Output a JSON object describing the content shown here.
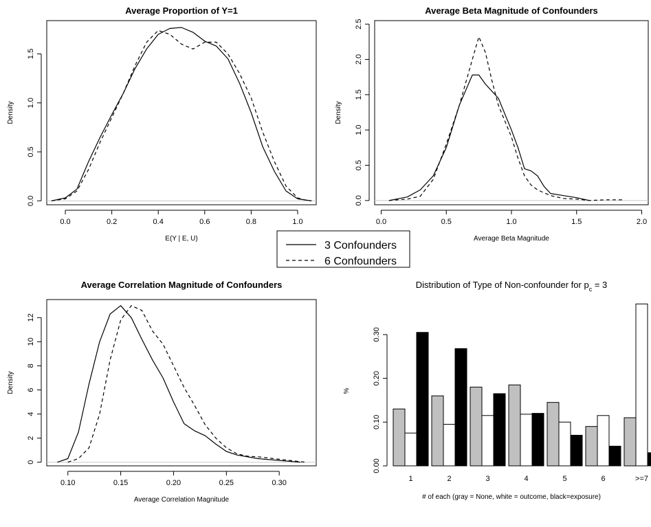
{
  "legend": {
    "entries": [
      {
        "label": "3 Confounders",
        "dash": "solid"
      },
      {
        "label": "6 Confounders",
        "dash": "dashed"
      }
    ]
  },
  "chart_data": [
    {
      "type": "line",
      "title": "Average Proportion of Y=1",
      "xlabel": "E(Y | E, U)",
      "ylabel": "Density",
      "xlim": [
        -0.08,
        1.08
      ],
      "ylim": [
        -0.04,
        1.84
      ],
      "xticks": [
        0.0,
        0.2,
        0.4,
        0.6,
        0.8,
        1.0
      ],
      "yticks": [
        0.0,
        0.5,
        1.0,
        1.5
      ],
      "xtick_labels": [
        "0.0",
        "0.2",
        "0.4",
        "0.6",
        "0.8",
        "1.0"
      ],
      "ytick_labels": [
        "0.0",
        "0.5",
        "1.0",
        "1.5"
      ],
      "series": [
        {
          "name": "3 Confounders",
          "x": [
            -0.06,
            0.0,
            0.05,
            0.1,
            0.15,
            0.2,
            0.25,
            0.3,
            0.35,
            0.4,
            0.45,
            0.5,
            0.55,
            0.6,
            0.65,
            0.7,
            0.75,
            0.8,
            0.85,
            0.9,
            0.95,
            1.0,
            1.03,
            1.06
          ],
          "y": [
            0,
            0.03,
            0.12,
            0.4,
            0.65,
            0.88,
            1.1,
            1.35,
            1.55,
            1.7,
            1.76,
            1.77,
            1.72,
            1.63,
            1.58,
            1.45,
            1.2,
            0.9,
            0.55,
            0.3,
            0.1,
            0.02,
            0.01,
            0
          ]
        },
        {
          "name": "6 Confounders",
          "x": [
            -0.06,
            0.0,
            0.05,
            0.1,
            0.15,
            0.2,
            0.25,
            0.3,
            0.35,
            0.4,
            0.45,
            0.5,
            0.55,
            0.6,
            0.65,
            0.7,
            0.75,
            0.8,
            0.85,
            0.9,
            0.95,
            1.0,
            1.03,
            1.06
          ],
          "y": [
            0,
            0.02,
            0.1,
            0.32,
            0.6,
            0.85,
            1.1,
            1.38,
            1.62,
            1.74,
            1.7,
            1.6,
            1.55,
            1.62,
            1.62,
            1.5,
            1.3,
            1.05,
            0.7,
            0.4,
            0.15,
            0.03,
            0.01,
            0
          ]
        }
      ]
    },
    {
      "type": "line",
      "title": "Average Beta Magnitude of Confounders",
      "xlabel": "Average Beta Magnitude",
      "ylabel": "Density",
      "xlim": [
        -0.05,
        2.05
      ],
      "ylim": [
        -0.06,
        2.55
      ],
      "xticks": [
        0.0,
        0.5,
        1.0,
        1.5,
        2.0
      ],
      "yticks": [
        0.0,
        0.5,
        1.0,
        1.5,
        2.0,
        2.5
      ],
      "xtick_labels": [
        "0.0",
        "0.5",
        "1.0",
        "1.5",
        "2.0"
      ],
      "ytick_labels": [
        "0.0",
        "0.5",
        "1.0",
        "1.5",
        "2.0",
        "2.5"
      ],
      "series": [
        {
          "name": "3 Confounders",
          "x": [
            0.06,
            0.2,
            0.3,
            0.4,
            0.5,
            0.6,
            0.7,
            0.75,
            0.8,
            0.9,
            1.0,
            1.05,
            1.1,
            1.15,
            1.2,
            1.25,
            1.3,
            1.4,
            1.5,
            1.55,
            1.6
          ],
          "y": [
            0,
            0.05,
            0.15,
            0.35,
            0.75,
            1.35,
            1.78,
            1.78,
            1.65,
            1.45,
            1.0,
            0.75,
            0.45,
            0.42,
            0.35,
            0.2,
            0.1,
            0.07,
            0.04,
            0.02,
            0
          ]
        },
        {
          "name": "6 Confounders",
          "x": [
            0.06,
            0.2,
            0.3,
            0.4,
            0.5,
            0.6,
            0.7,
            0.75,
            0.8,
            0.85,
            0.9,
            1.0,
            1.05,
            1.1,
            1.15,
            1.2,
            1.3,
            1.4,
            1.5,
            1.55,
            1.6,
            1.72,
            1.8,
            1.86
          ],
          "y": [
            0,
            0.02,
            0.06,
            0.3,
            0.8,
            1.35,
            2.0,
            2.32,
            2.1,
            1.7,
            1.35,
            0.9,
            0.6,
            0.35,
            0.22,
            0.15,
            0.07,
            0.03,
            0.02,
            0.01,
            0,
            0.01,
            0.01,
            0.01
          ]
        }
      ]
    },
    {
      "type": "line",
      "title": "Average Correlation Magnitude of Confounders",
      "xlabel": "Average Correlation Magnitude",
      "ylabel": "Density",
      "xlim": [
        0.08,
        0.335
      ],
      "ylim": [
        -0.3,
        13.5
      ],
      "xticks": [
        0.1,
        0.15,
        0.2,
        0.25,
        0.3
      ],
      "yticks": [
        0,
        2,
        4,
        6,
        8,
        10,
        12
      ],
      "xtick_labels": [
        "0.10",
        "0.15",
        "0.20",
        "0.25",
        "0.30"
      ],
      "ytick_labels": [
        "0",
        "2",
        "4",
        "6",
        "8",
        "10",
        "12"
      ],
      "series": [
        {
          "name": "3 Confounders",
          "x": [
            0.09,
            0.1,
            0.11,
            0.12,
            0.13,
            0.14,
            0.15,
            0.16,
            0.17,
            0.18,
            0.19,
            0.2,
            0.21,
            0.22,
            0.23,
            0.24,
            0.25,
            0.26,
            0.28,
            0.3,
            0.32
          ],
          "y": [
            0,
            0.3,
            2.5,
            6.5,
            10.0,
            12.3,
            13.0,
            12.0,
            10.2,
            8.5,
            7.0,
            5.0,
            3.2,
            2.6,
            2.2,
            1.5,
            0.9,
            0.6,
            0.3,
            0.15,
            0
          ]
        },
        {
          "name": "6 Confounders",
          "x": [
            0.1,
            0.11,
            0.12,
            0.13,
            0.14,
            0.15,
            0.16,
            0.17,
            0.18,
            0.19,
            0.2,
            0.21,
            0.22,
            0.23,
            0.24,
            0.25,
            0.26,
            0.27,
            0.28,
            0.3,
            0.32,
            0.325
          ],
          "y": [
            0,
            0.3,
            1.2,
            4.0,
            8.5,
            11.8,
            13.0,
            12.6,
            10.9,
            9.8,
            8.0,
            6.2,
            4.7,
            3.1,
            2.0,
            1.2,
            0.7,
            0.5,
            0.45,
            0.25,
            0.05,
            0
          ]
        }
      ]
    },
    {
      "type": "bar",
      "title": "Distribution of Type of Non-confounder for p",
      "title_subscript": "c",
      "title_suffix": " = 3",
      "xlabel": "# of each (gray = None, white = outcome, black=exposure)",
      "ylabel": "%",
      "ylim": [
        0,
        0.38
      ],
      "yticks": [
        0.0,
        0.1,
        0.2,
        0.3
      ],
      "ytick_labels": [
        "0.00",
        "0.10",
        "0.20",
        "0.30"
      ],
      "categories": [
        "1",
        "2",
        "3",
        "4",
        "5",
        "6",
        ">=7"
      ],
      "series": [
        {
          "key": "none",
          "color": "#c0c0c0",
          "values": [
            0.13,
            0.16,
            0.18,
            0.185,
            0.145,
            0.09,
            0.11
          ]
        },
        {
          "key": "outcome",
          "color": "#ffffff",
          "values": [
            0.075,
            0.095,
            0.115,
            0.118,
            0.1,
            0.115,
            0.37
          ]
        },
        {
          "key": "exposure",
          "color": "#000000",
          "values": [
            0.305,
            0.268,
            0.165,
            0.12,
            0.07,
            0.045,
            0.03
          ]
        }
      ]
    }
  ]
}
